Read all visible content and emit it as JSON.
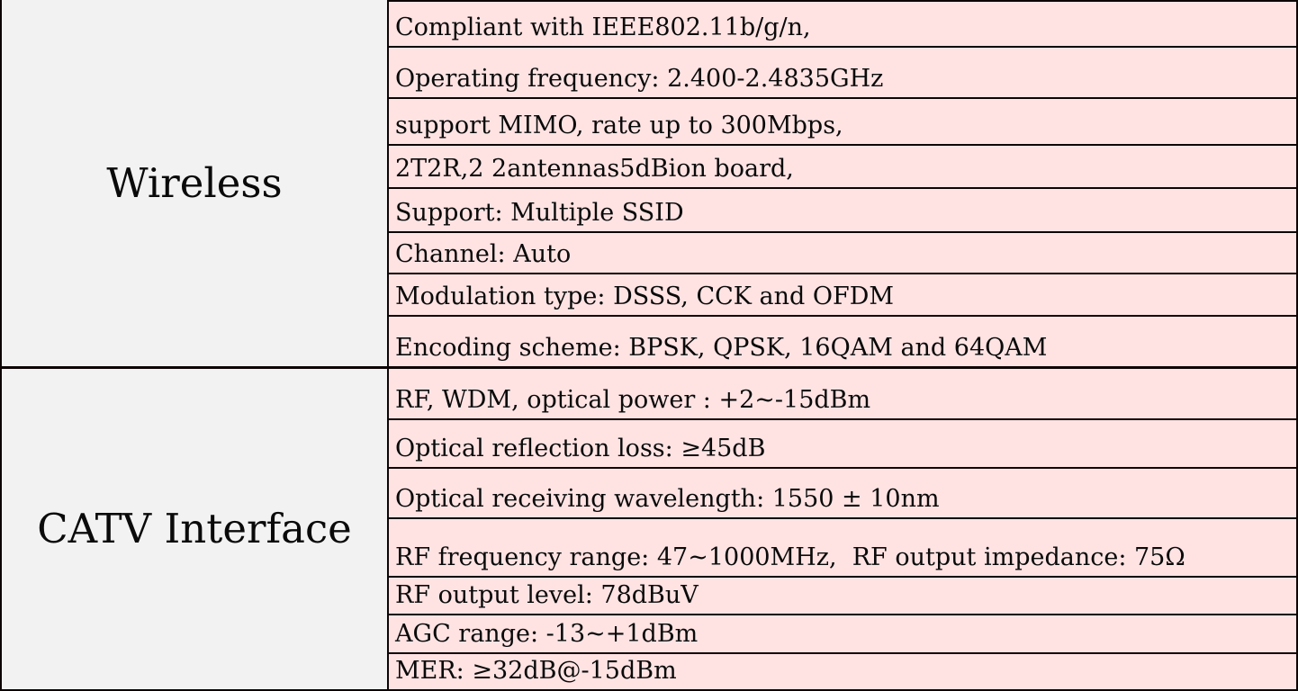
{
  "table": {
    "sections": [
      {
        "label": "Wireless",
        "rows": [
          "Compliant with IEEE802.11b/g/n,",
          "Operating frequency: 2.400-2.4835GHz",
          "support MIMO, rate up to 300Mbps,",
          "2T2R,2 2antennas5dBion board,",
          "Support: Multiple SSID",
          "Channel: Auto",
          "Modulation type: DSSS, CCK and OFDM",
          "Encoding scheme: BPSK, QPSK, 16QAM and 64QAM"
        ]
      },
      {
        "label": "CATV Interface",
        "rows": [
          "RF, WDM, optical power : +2~-15dBm",
          "Optical reflection loss: ≥45dB",
          "Optical receiving wavelength: 1550 ± 10nm",
          "RF frequency range: 47~1000MHz,  RF output impedance: 75Ω",
          "RF output level: 78dBuV",
          "AGC range: -13~+1dBm",
          "MER: ≥32dB@-15dBm"
        ]
      }
    ]
  },
  "colors": {
    "border": "#0d0404",
    "row_bg": "#ffe3e3",
    "label_bg": "#f2f2f2",
    "text": "#0a0a0a"
  }
}
